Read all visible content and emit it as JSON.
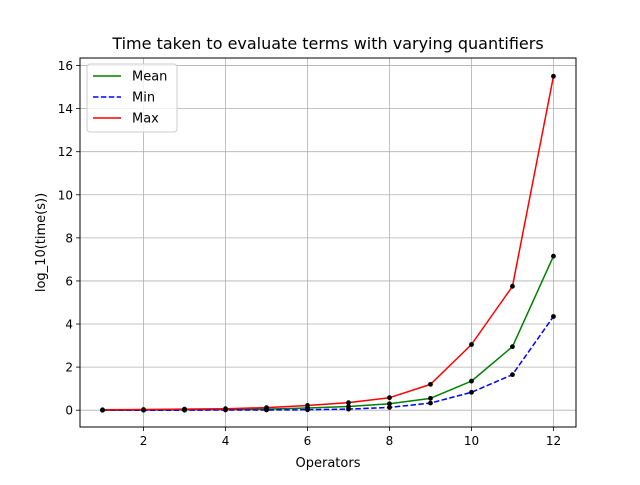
{
  "chart_data": {
    "type": "line",
    "title": "Time taken to evaluate terms with varying quantifiers",
    "xlabel": "Operators",
    "ylabel": "log_10(time(s))",
    "xlim": [
      0.45,
      12.55
    ],
    "ylim": [
      -0.78,
      16.35
    ],
    "xticks": [
      2,
      4,
      6,
      8,
      10,
      12
    ],
    "yticks": [
      0,
      2,
      4,
      6,
      8,
      10,
      12,
      14,
      16
    ],
    "grid": true,
    "legend_position": "upper-left",
    "x": [
      1,
      2,
      3,
      4,
      5,
      6,
      7,
      8,
      9,
      10,
      11,
      12
    ],
    "series": [
      {
        "name": "Mean",
        "color": "#008000",
        "linestyle": "solid",
        "values": [
          0.0,
          0.01,
          0.02,
          0.03,
          0.05,
          0.1,
          0.17,
          0.3,
          0.55,
          1.35,
          2.95,
          7.15
        ]
      },
      {
        "name": "Min",
        "color": "#0000ff",
        "linestyle": "dashed",
        "values": [
          0.0,
          0.0,
          0.0,
          0.01,
          0.01,
          0.02,
          0.05,
          0.13,
          0.33,
          0.83,
          1.65,
          4.35
        ]
      },
      {
        "name": "Max",
        "color": "#ff0000",
        "linestyle": "solid",
        "values": [
          0.02,
          0.03,
          0.05,
          0.07,
          0.12,
          0.22,
          0.35,
          0.58,
          1.2,
          3.05,
          5.75,
          15.5
        ]
      }
    ]
  }
}
